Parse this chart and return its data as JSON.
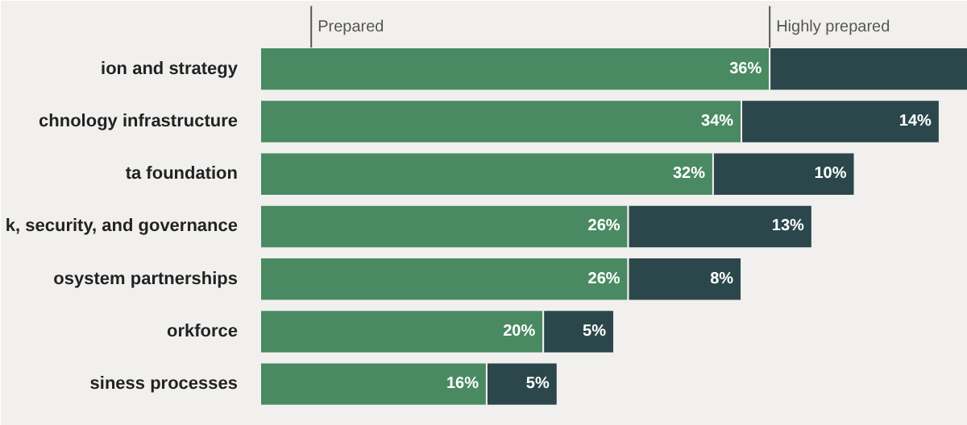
{
  "chart_data": {
    "type": "bar",
    "orientation": "horizontal",
    "stacked": true,
    "categories": [
      "ion and strategy",
      "chnology infrastructure",
      "ta foundation",
      "k, security, and governance",
      "osystem partnerships",
      "orkforce",
      "siness processes"
    ],
    "xlim": [
      0,
      50
    ],
    "series": [
      {
        "name": "Prepared",
        "color": "#4a8a63",
        "values": [
          36,
          34,
          32,
          26,
          26,
          20,
          16
        ],
        "value_labels": [
          "36%",
          "34%",
          "32%",
          "26%",
          "26%",
          "20%",
          "16%"
        ]
      },
      {
        "name": "Highly prepared",
        "color": "#2b474b",
        "values": [
          14,
          14,
          10,
          13,
          8,
          5,
          5
        ],
        "value_labels": [
          null,
          "14%",
          "10%",
          "13%",
          "8%",
          "5%",
          "5%"
        ]
      }
    ]
  }
}
